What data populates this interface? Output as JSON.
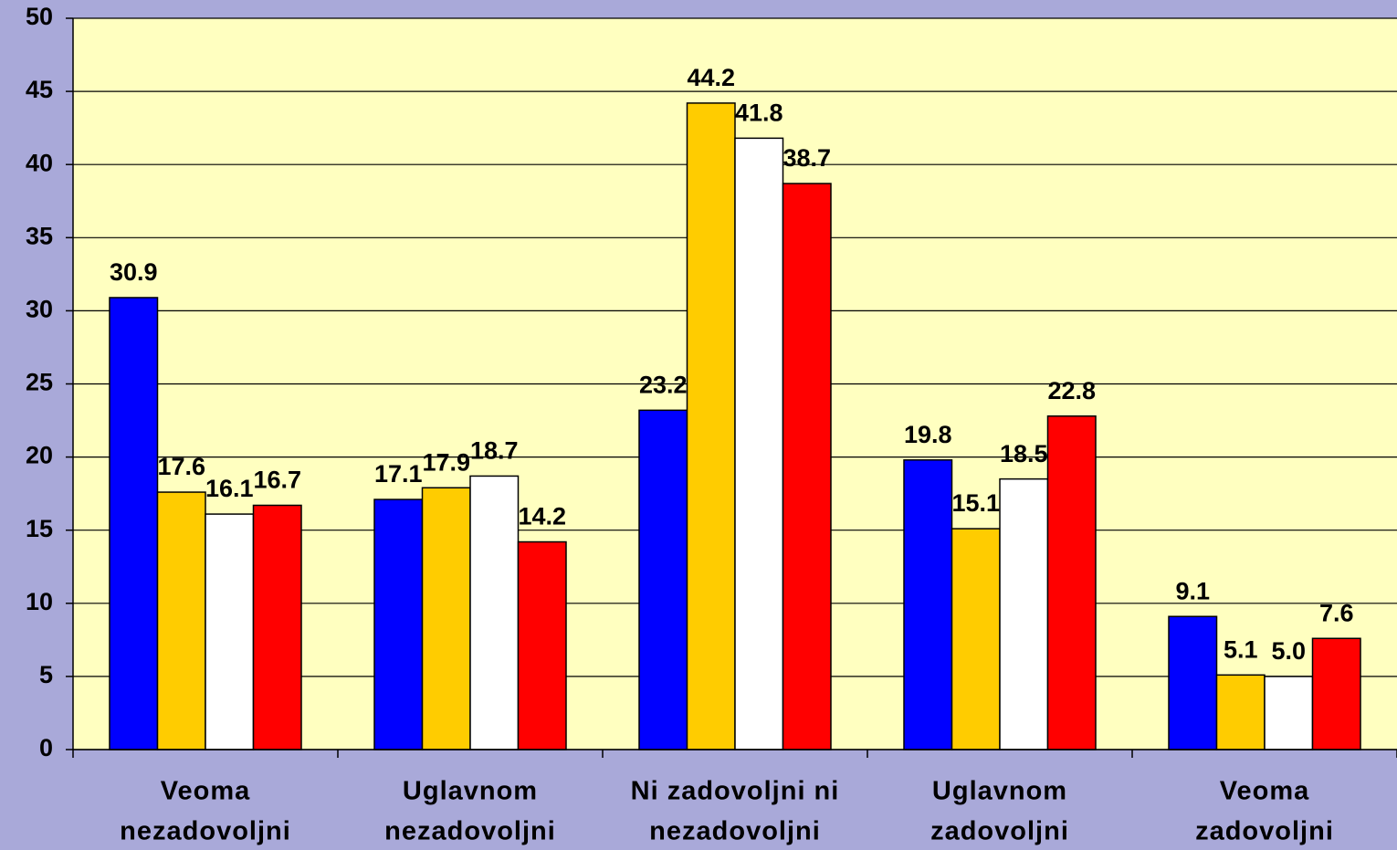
{
  "chart_data": {
    "type": "bar",
    "categories": [
      [
        "Veoma",
        "nezadovoljni"
      ],
      [
        "Uglavnom",
        "nezadovoljni"
      ],
      [
        "Ni zadovoljni ni",
        "nezadovoljni"
      ],
      [
        "Uglavnom",
        "zadovoljni"
      ],
      [
        "Veoma",
        "zadovoljni"
      ]
    ],
    "series": [
      {
        "color": "#0000ff",
        "values": [
          30.9,
          17.1,
          23.2,
          19.8,
          9.1
        ],
        "value_labels": [
          "30.9",
          "17.1",
          "23.2",
          "19.8",
          "9.1"
        ]
      },
      {
        "color": "#ffcc00",
        "values": [
          17.6,
          17.9,
          44.2,
          15.1,
          5.1
        ],
        "value_labels": [
          "17.6",
          "17.9",
          "44.2",
          "15.1",
          "5.1"
        ]
      },
      {
        "color": "#ffffff",
        "values": [
          16.1,
          18.7,
          41.8,
          18.5,
          5.0
        ],
        "value_labels": [
          "16.1",
          "18.7",
          "41.8",
          "18.5",
          "5.0"
        ]
      },
      {
        "color": "#ff0000",
        "values": [
          16.7,
          14.2,
          38.7,
          22.8,
          7.6
        ],
        "value_labels": [
          "16.7",
          "14.2",
          "38.7",
          "22.8",
          "7.6"
        ]
      }
    ],
    "ylim": [
      0,
      50
    ],
    "yticks": [
      0,
      5,
      10,
      15,
      20,
      25,
      30,
      35,
      40,
      45,
      50
    ],
    "grid": true
  }
}
